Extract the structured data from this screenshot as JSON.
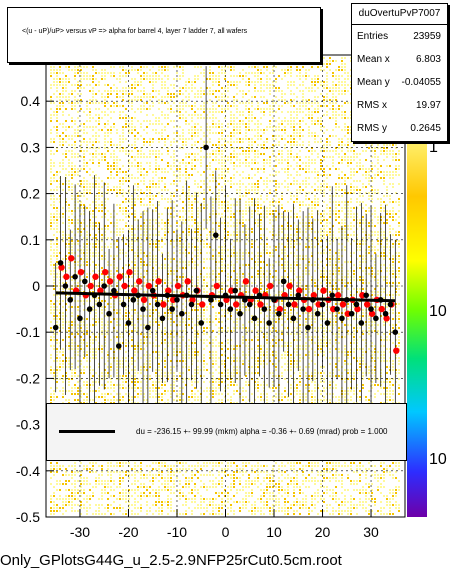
{
  "title": "<(u - uP)/uP> versus   vP => alpha for barrel 4, layer 7 ladder 7, all wafers",
  "stats": {
    "name": "duOvertuPvP7007",
    "rows": [
      {
        "label": "Entries",
        "value": "23959"
      },
      {
        "label": "Mean x",
        "value": "6.803"
      },
      {
        "label": "Mean y",
        "value": "-0.04055"
      },
      {
        "label": "RMS x",
        "value": "19.97"
      },
      {
        "label": "RMS y",
        "value": "0.2645"
      }
    ]
  },
  "fit_legend": "du = -236.15 +- 99.99 (mkm) alpha =  -0.36 +-  0.69 (mrad) prob = 1.000",
  "footer": "Only_GPlotsG44G_u_2.5-2.9NFP25rCut0.5cm.root",
  "colors": {
    "density_low": "#fff99a",
    "density_mid": "#f5c400",
    "points": "#000000",
    "red_points": "#ff0000",
    "fit": "#000000"
  },
  "chart_data": {
    "type": "scatter",
    "xlim": [
      -37,
      37
    ],
    "ylim": [
      -0.5,
      0.5
    ],
    "x_ticks": [
      "-30",
      "-20",
      "-10",
      "0",
      "10",
      "20",
      "30"
    ],
    "y_ticks": [
      "-0.5",
      "-0.4",
      "-0.3",
      "-0.2",
      "-0.1",
      "0",
      "0.1",
      "0.2",
      "0.3",
      "0.4"
    ],
    "colorbar_labels": [
      "1",
      "10",
      "10"
    ],
    "grid": true,
    "fit_line": {
      "x": [
        -35,
        35
      ],
      "y": [
        -0.015,
        -0.032
      ]
    },
    "black_points": [
      {
        "x": -35,
        "y": -0.09
      },
      {
        "x": -34,
        "y": 0.05
      },
      {
        "x": -33,
        "y": 0.0
      },
      {
        "x": -32,
        "y": -0.03
      },
      {
        "x": -31,
        "y": 0.02
      },
      {
        "x": -30,
        "y": -0.07
      },
      {
        "x": -29,
        "y": 0.01
      },
      {
        "x": -28,
        "y": -0.05
      },
      {
        "x": -27,
        "y": -0.02
      },
      {
        "x": -26,
        "y": -0.04
      },
      {
        "x": -25,
        "y": 0.0
      },
      {
        "x": -24,
        "y": -0.06
      },
      {
        "x": -23,
        "y": -0.01
      },
      {
        "x": -22,
        "y": -0.13
      },
      {
        "x": -21,
        "y": -0.04
      },
      {
        "x": -20,
        "y": -0.08
      },
      {
        "x": -19,
        "y": -0.03
      },
      {
        "x": -18,
        "y": -0.02
      },
      {
        "x": -17,
        "y": -0.05
      },
      {
        "x": -16,
        "y": -0.09
      },
      {
        "x": -15,
        "y": -0.01
      },
      {
        "x": -14,
        "y": -0.04
      },
      {
        "x": -13,
        "y": -0.07
      },
      {
        "x": -12,
        "y": -0.02
      },
      {
        "x": -11,
        "y": -0.05
      },
      {
        "x": -10,
        "y": -0.03
      },
      {
        "x": -9,
        "y": -0.06
      },
      {
        "x": -8,
        "y": -0.02
      },
      {
        "x": -7,
        "y": -0.04
      },
      {
        "x": -6,
        "y": -0.01
      },
      {
        "x": -5,
        "y": -0.08
      },
      {
        "x": -4,
        "y": 0.3
      },
      {
        "x": -3,
        "y": -0.03
      },
      {
        "x": -2,
        "y": 0.11
      },
      {
        "x": -1,
        "y": -0.04
      },
      {
        "x": 0,
        "y": -0.02
      },
      {
        "x": 1,
        "y": -0.05
      },
      {
        "x": 2,
        "y": -0.01
      },
      {
        "x": 3,
        "y": -0.06
      },
      {
        "x": 4,
        "y": -0.03
      },
      {
        "x": 5,
        "y": -0.04
      },
      {
        "x": 6,
        "y": -0.07
      },
      {
        "x": 7,
        "y": -0.02
      },
      {
        "x": 8,
        "y": -0.05
      },
      {
        "x": 9,
        "y": -0.08
      },
      {
        "x": 10,
        "y": -0.03
      },
      {
        "x": 11,
        "y": -0.06
      },
      {
        "x": 12,
        "y": 0.01
      },
      {
        "x": 13,
        "y": -0.04
      },
      {
        "x": 14,
        "y": -0.07
      },
      {
        "x": 15,
        "y": -0.02
      },
      {
        "x": 16,
        "y": -0.05
      },
      {
        "x": 17,
        "y": -0.09
      },
      {
        "x": 18,
        "y": -0.03
      },
      {
        "x": 19,
        "y": -0.06
      },
      {
        "x": 20,
        "y": -0.04
      },
      {
        "x": 21,
        "y": -0.08
      },
      {
        "x": 22,
        "y": -0.02
      },
      {
        "x": 23,
        "y": -0.05
      },
      {
        "x": 24,
        "y": -0.07
      },
      {
        "x": 25,
        "y": -0.03
      },
      {
        "x": 26,
        "y": -0.06
      },
      {
        "x": 27,
        "y": -0.04
      },
      {
        "x": 28,
        "y": -0.08
      },
      {
        "x": 29,
        "y": -0.02
      },
      {
        "x": 30,
        "y": -0.05
      },
      {
        "x": 31,
        "y": -0.07
      },
      {
        "x": 32,
        "y": -0.03
      },
      {
        "x": 33,
        "y": -0.06
      },
      {
        "x": 34,
        "y": -0.04
      },
      {
        "x": 35,
        "y": -0.1
      }
    ],
    "red_points": [
      {
        "x": -34,
        "y": 0.04
      },
      {
        "x": -33,
        "y": 0.02
      },
      {
        "x": -32,
        "y": 0.06
      },
      {
        "x": -31,
        "y": -0.01
      },
      {
        "x": -30,
        "y": 0.03
      },
      {
        "x": -29,
        "y": -0.02
      },
      {
        "x": -28,
        "y": 0.0
      },
      {
        "x": -27,
        "y": 0.02
      },
      {
        "x": -26,
        "y": -0.01
      },
      {
        "x": -25,
        "y": 0.03
      },
      {
        "x": -24,
        "y": 0.01
      },
      {
        "x": -23,
        "y": -0.02
      },
      {
        "x": -22,
        "y": 0.02
      },
      {
        "x": -21,
        "y": 0.0
      },
      {
        "x": -20,
        "y": 0.03
      },
      {
        "x": -19,
        "y": -0.01
      },
      {
        "x": -18,
        "y": 0.01
      },
      {
        "x": -17,
        "y": -0.03
      },
      {
        "x": -16,
        "y": 0.0
      },
      {
        "x": -15,
        "y": -0.02
      },
      {
        "x": -14,
        "y": 0.01
      },
      {
        "x": -13,
        "y": -0.04
      },
      {
        "x": -12,
        "y": -0.01
      },
      {
        "x": -11,
        "y": -0.03
      },
      {
        "x": -10,
        "y": 0.0
      },
      {
        "x": -9,
        "y": -0.02
      },
      {
        "x": -8,
        "y": 0.01
      },
      {
        "x": -7,
        "y": -0.03
      },
      {
        "x": -6,
        "y": -0.01
      },
      {
        "x": -5,
        "y": -0.04
      },
      {
        "x": -3,
        "y": -0.02
      },
      {
        "x": -2,
        "y": 0.0
      },
      {
        "x": 0,
        "y": -0.03
      },
      {
        "x": 1,
        "y": -0.01
      },
      {
        "x": 2,
        "y": -0.04
      },
      {
        "x": 3,
        "y": -0.02
      },
      {
        "x": 4,
        "y": 0.01
      },
      {
        "x": 5,
        "y": -0.03
      },
      {
        "x": 6,
        "y": -0.01
      },
      {
        "x": 7,
        "y": -0.04
      },
      {
        "x": 8,
        "y": -0.02
      },
      {
        "x": 9,
        "y": 0.0
      },
      {
        "x": 10,
        "y": -0.03
      },
      {
        "x": 11,
        "y": -0.05
      },
      {
        "x": 12,
        "y": -0.02
      },
      {
        "x": 13,
        "y": 0.0
      },
      {
        "x": 14,
        "y": -0.04
      },
      {
        "x": 15,
        "y": -0.01
      },
      {
        "x": 16,
        "y": -0.03
      },
      {
        "x": 17,
        "y": -0.05
      },
      {
        "x": 18,
        "y": -0.02
      },
      {
        "x": 19,
        "y": -0.04
      },
      {
        "x": 20,
        "y": -0.01
      },
      {
        "x": 21,
        "y": -0.03
      },
      {
        "x": 22,
        "y": -0.05
      },
      {
        "x": 23,
        "y": -0.02
      },
      {
        "x": 24,
        "y": -0.04
      },
      {
        "x": 25,
        "y": -0.06
      },
      {
        "x": 26,
        "y": -0.03
      },
      {
        "x": 27,
        "y": -0.05
      },
      {
        "x": 28,
        "y": -0.02
      },
      {
        "x": 29,
        "y": -0.04
      },
      {
        "x": 30,
        "y": -0.06
      },
      {
        "x": 31,
        "y": -0.03
      },
      {
        "x": 32,
        "y": -0.05
      },
      {
        "x": 33,
        "y": -0.07
      },
      {
        "x": 34,
        "y": -0.04
      },
      {
        "x": 35,
        "y": -0.14
      }
    ]
  }
}
